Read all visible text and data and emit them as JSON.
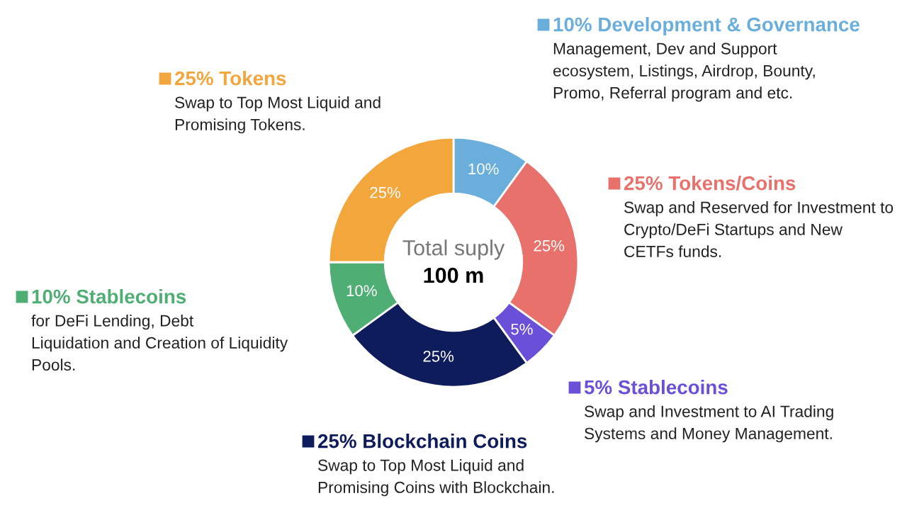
{
  "chart_data": {
    "type": "donut",
    "categories": [
      "10% Development & Governance",
      "25% Tokens/Coins",
      "5% Stablecoins",
      "25% Blockchain Coins",
      "10% Stablecoins",
      "25% Tokens"
    ],
    "values": [
      10,
      25,
      5,
      25,
      10,
      25
    ],
    "legend": "top left",
    "colors": [
      "#6aaedb",
      "#e8716b",
      "#6a4fd8",
      "#0f1c5c",
      "#4fae74",
      "#f2a63c"
    ],
    "value_labels": [
      "10%",
      "25%",
      "5%",
      "25%",
      "10%",
      "25%"
    ],
    "annotations": [
      "Management, Dev and Support\necosystem, Listings, Airdrop, Bounty,\nPromo, Referral program and etc.",
      "Swap and Reserved for Investment to\nCrypto/DeFi Startups and New\nCETFs funds.",
      "Swap and Investment to AI Trading\nSystems and Money Management.",
      "Swap to Top Most Liquid and\nPromising Coins with Blockchain.",
      "for DeFi Lending, Debt\nLiquidation and Creation of Liquidity\nPools.",
      "Swap to Top Most Liquid and\nPromising Tokens.",
      "Total suply",
      "100 m"
    ]
  }
}
